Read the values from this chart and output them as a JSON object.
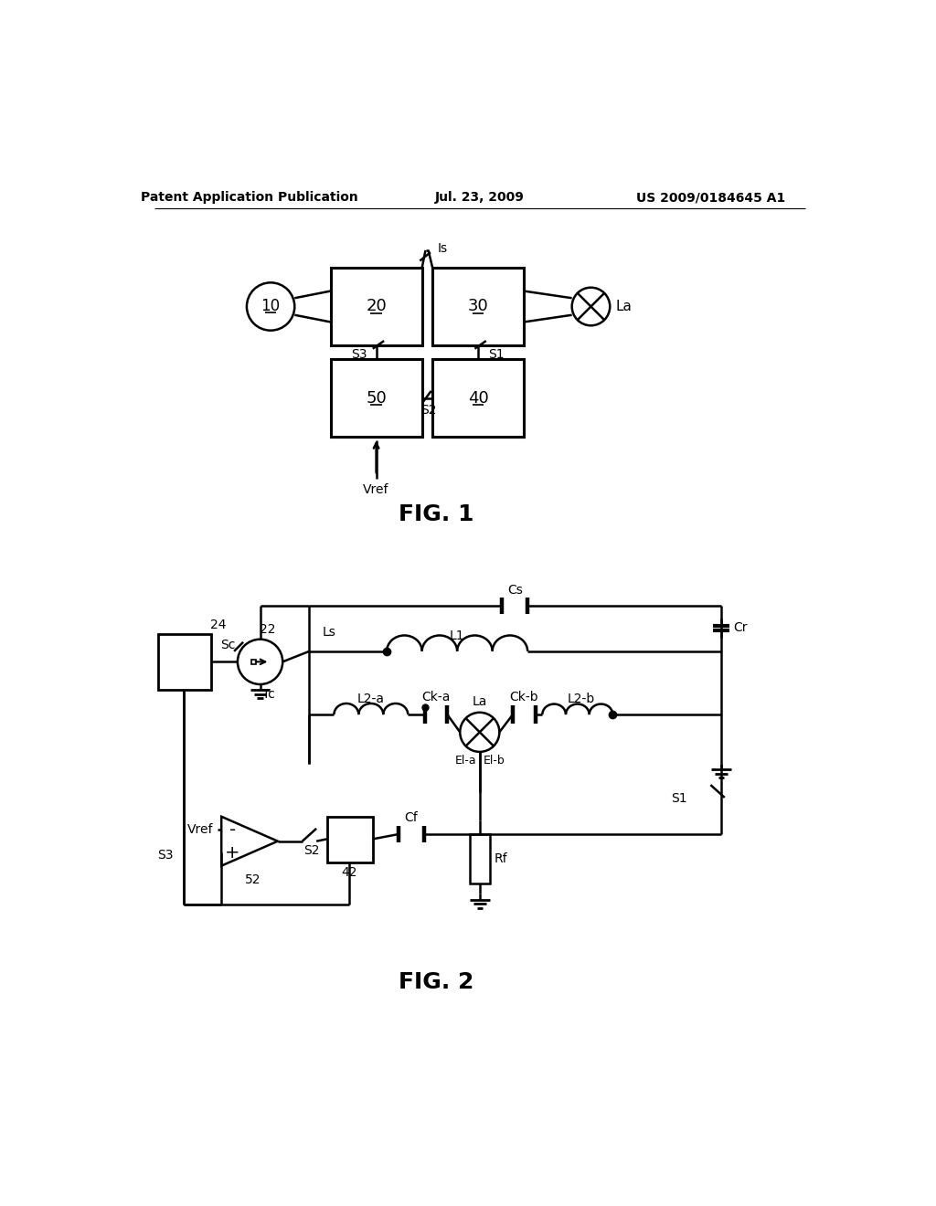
{
  "bg_color": "#ffffff",
  "line_color": "#000000",
  "header_left": "Patent Application Publication",
  "header_mid": "Jul. 23, 2009",
  "header_right": "US 2009/0184645 A1",
  "fig1_label": "FIG. 1",
  "fig2_label": "FIG. 2",
  "font_color": "#000000"
}
